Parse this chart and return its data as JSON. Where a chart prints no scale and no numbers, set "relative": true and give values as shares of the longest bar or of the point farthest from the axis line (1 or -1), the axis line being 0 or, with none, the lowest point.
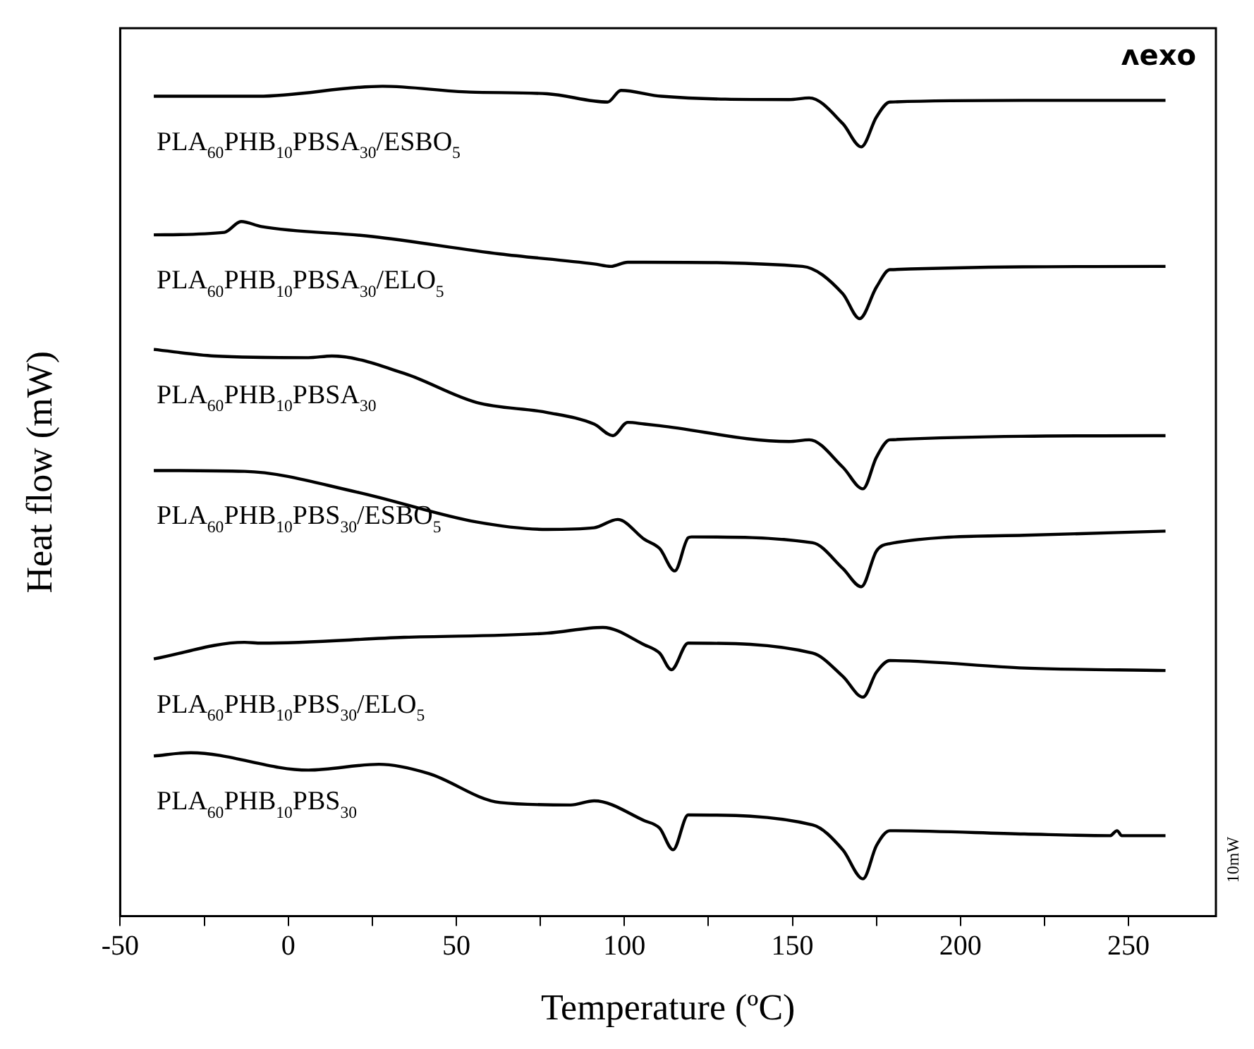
{
  "chart_data": {
    "type": "line",
    "xlabel": "Temperature (ºC)",
    "ylabel": "Heat flow (mW)",
    "relative": true,
    "marker": "none",
    "xlim": [
      -50,
      276
    ],
    "xticks": [
      -50,
      {
        "value": -25,
        "label": null
      },
      0,
      {
        "value": 25,
        "label": null
      },
      50,
      {
        "value": 75,
        "label": null
      },
      100,
      {
        "value": 125,
        "label": null
      },
      150,
      {
        "value": 175,
        "label": null
      },
      200,
      {
        "value": 225,
        "label": null
      },
      250
    ],
    "annotations": [
      "ʌexo",
      "10mW"
    ],
    "series": [
      {
        "name": "PLA$_{60}$PHB$_{10}$PBSA$_{30}$/ESBO$_{5}$",
        "color": "#000000",
        "x": [
          -40,
          -9,
          28,
          54,
          77,
          95,
          99,
          111,
          149,
          155,
          165,
          170.5,
          175,
          179,
          219,
          261
        ],
        "values": [
          0.988,
          0.988,
          1.0,
          0.993,
          0.991,
          0.981,
          0.995,
          0.988,
          0.984,
          0.986,
          0.955,
          0.927,
          0.963,
          0.981,
          0.983,
          0.983
        ]
      },
      {
        "name": "PLA$_{60}$PHB$_{10}$PBSA$_{30}$/ELO$_{5}$",
        "color": "#000000",
        "x": [
          -40,
          -19,
          -14,
          -8,
          25,
          63,
          91,
          96,
          101,
          106,
          153,
          165,
          170,
          175,
          179,
          261
        ],
        "values": [
          0.821,
          0.824,
          0.837,
          0.831,
          0.819,
          0.798,
          0.786,
          0.783,
          0.788,
          0.788,
          0.783,
          0.75,
          0.72,
          0.758,
          0.779,
          0.783
        ]
      },
      {
        "name": "PLA$_{60}$PHB$_{10}$PBSA$_{30}$",
        "color": "#000000",
        "x": [
          -40,
          -22,
          6,
          13,
          34.5,
          56,
          77,
          91,
          96.6,
          101,
          106,
          110.5,
          149,
          155,
          165,
          171,
          175,
          179,
          261
        ],
        "values": [
          0.683,
          0.675,
          0.673,
          0.675,
          0.654,
          0.619,
          0.607,
          0.593,
          0.579,
          0.595,
          0.593,
          0.591,
          0.572,
          0.574,
          0.541,
          0.515,
          0.553,
          0.574,
          0.579
        ]
      },
      {
        "name": "PLA$_{60}$PHB$_{10}$PBS$_{30}$/ESBO$_{5}$",
        "color": "#000000",
        "x": [
          -40,
          -13,
          20.5,
          56,
          77,
          91,
          98,
          106,
          110.5,
          115,
          119,
          120,
          156,
          165,
          170.5,
          175,
          179,
          219,
          261
        ],
        "values": [
          0.537,
          0.536,
          0.511,
          0.475,
          0.466,
          0.468,
          0.478,
          0.454,
          0.443,
          0.416,
          0.456,
          0.457,
          0.45,
          0.419,
          0.397,
          0.44,
          0.449,
          0.459,
          0.464
        ]
      },
      {
        "name": "PLA$_{60}$PHB$_{10}$PBS$_{30}$/ELO$_{5}$",
        "color": "#000000",
        "x": [
          -40,
          -13,
          -8,
          34.5,
          77,
          93.6,
          106,
          110.5,
          114,
          119,
          156,
          165,
          171,
          175,
          179,
          219,
          261
        ],
        "values": [
          0.31,
          0.33,
          0.329,
          0.336,
          0.341,
          0.348,
          0.327,
          0.317,
          0.297,
          0.329,
          0.317,
          0.289,
          0.264,
          0.294,
          0.308,
          0.299,
          0.296
        ]
      },
      {
        "name": "PLA$_{60}$PHB$_{10}$PBS$_{30}$",
        "color": "#000000",
        "x": [
          -40,
          -29,
          6,
          27,
          41.7,
          63,
          84,
          91,
          106,
          110.5,
          114.5,
          119,
          156,
          165,
          171,
          175,
          179,
          219,
          244.5,
          246.6,
          248,
          261
        ],
        "values": [
          0.193,
          0.197,
          0.176,
          0.183,
          0.172,
          0.137,
          0.134,
          0.139,
          0.115,
          0.106,
          0.08,
          0.122,
          0.11,
          0.08,
          0.045,
          0.085,
          0.103,
          0.099,
          0.097,
          0.103,
          0.097,
          0.097
        ]
      }
    ]
  }
}
